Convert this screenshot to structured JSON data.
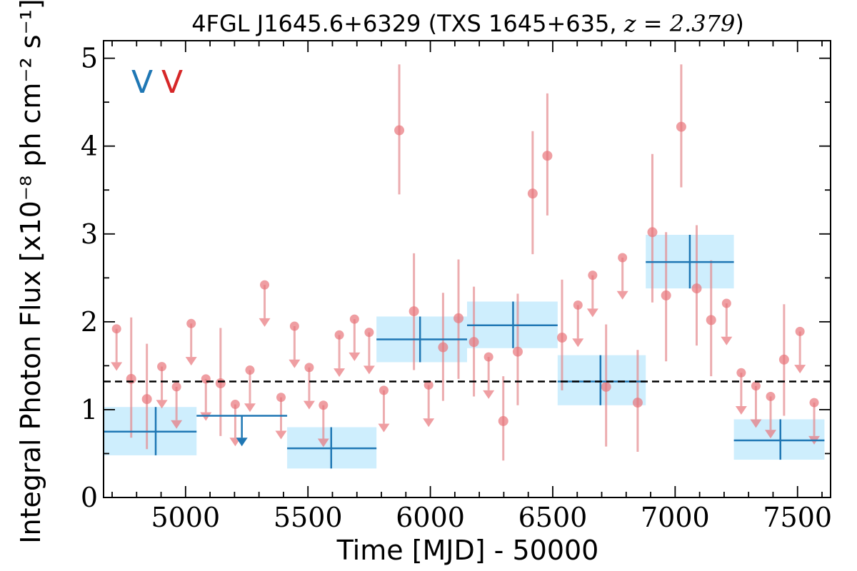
{
  "chart_data": {
    "type": "scatter",
    "title": "4FGL J1645.6+6329 (TXS 1645+635, ",
    "title_math": "z = 2.379",
    "title_close": ")",
    "xlabel": "Time [MJD] - 50000",
    "ylabel": "Integral Photon Flux [x10⁻⁸ ph cm⁻² s⁻¹]",
    "xlim": [
      4665,
      7635
    ],
    "ylim": [
      0,
      5.2
    ],
    "xticks": [
      5000,
      5500,
      6000,
      6500,
      7000,
      7500
    ],
    "xtick_labels": [
      "5000",
      "5500",
      "6000",
      "6500",
      "7000",
      "7500"
    ],
    "yticks": [
      0,
      1,
      2,
      3,
      4,
      5
    ],
    "ytick_labels": [
      "0",
      "1",
      "2",
      "3",
      "4",
      "5"
    ],
    "grid": false,
    "mean_flux": 1.32,
    "legend": [
      {
        "label": "V",
        "color": "#1f77b4"
      },
      {
        "label": "V",
        "color": "#d62728"
      }
    ],
    "colors": {
      "fine": "#e8757a",
      "fine_line": "#e58a8e",
      "coarse": "#1f77b4",
      "coarse_band": "#b3e5fc"
    },
    "fine_series": {
      "name": "",
      "detections": [
        {
          "x": 4778,
          "y": 1.35,
          "lo": 0.68,
          "hi": 2.05
        },
        {
          "x": 4842,
          "y": 1.12,
          "lo": 0.55,
          "hi": 1.75
        },
        {
          "x": 5143,
          "y": 1.3,
          "lo": 0.7,
          "hi": 1.93
        },
        {
          "x": 5873,
          "y": 4.18,
          "lo": 3.45,
          "hi": 4.93
        },
        {
          "x": 5933,
          "y": 2.12,
          "lo": 1.45,
          "hi": 2.78
        },
        {
          "x": 6052,
          "y": 1.71,
          "lo": 1.1,
          "hi": 2.33
        },
        {
          "x": 6115,
          "y": 2.04,
          "lo": 1.35,
          "hi": 2.71
        },
        {
          "x": 6178,
          "y": 1.77,
          "lo": 1.15,
          "hi": 2.4
        },
        {
          "x": 6298,
          "y": 0.87,
          "lo": 0.42,
          "hi": 1.38
        },
        {
          "x": 6357,
          "y": 1.66,
          "lo": 1.05,
          "hi": 2.32
        },
        {
          "x": 6418,
          "y": 3.46,
          "lo": 2.77,
          "hi": 4.17
        },
        {
          "x": 6478,
          "y": 3.89,
          "lo": 3.21,
          "hi": 4.6
        },
        {
          "x": 6538,
          "y": 1.82,
          "lo": 1.22,
          "hi": 2.48
        },
        {
          "x": 6718,
          "y": 1.26,
          "lo": 0.58,
          "hi": 1.97
        },
        {
          "x": 6847,
          "y": 1.08,
          "lo": 0.52,
          "hi": 1.68
        },
        {
          "x": 6907,
          "y": 3.02,
          "lo": 2.22,
          "hi": 3.91
        },
        {
          "x": 6963,
          "y": 2.3,
          "lo": 1.55,
          "hi": 3.02
        },
        {
          "x": 7025,
          "y": 4.22,
          "lo": 3.53,
          "hi": 4.93
        },
        {
          "x": 7088,
          "y": 2.38,
          "lo": 1.73,
          "hi": 3.1
        },
        {
          "x": 7147,
          "y": 2.02,
          "lo": 1.38,
          "hi": 2.7
        },
        {
          "x": 7445,
          "y": 1.57,
          "lo": 0.93,
          "hi": 2.2
        }
      ],
      "upper_limits": [
        {
          "x": 4718,
          "y": 1.92
        },
        {
          "x": 4903,
          "y": 1.49
        },
        {
          "x": 4963,
          "y": 1.26
        },
        {
          "x": 5023,
          "y": 1.98
        },
        {
          "x": 5083,
          "y": 1.35
        },
        {
          "x": 5203,
          "y": 1.06
        },
        {
          "x": 5263,
          "y": 1.45
        },
        {
          "x": 5323,
          "y": 2.42
        },
        {
          "x": 5390,
          "y": 1.14
        },
        {
          "x": 5445,
          "y": 1.95
        },
        {
          "x": 5505,
          "y": 1.48
        },
        {
          "x": 5563,
          "y": 1.05
        },
        {
          "x": 5628,
          "y": 1.85
        },
        {
          "x": 5690,
          "y": 2.03
        },
        {
          "x": 5750,
          "y": 1.88
        },
        {
          "x": 5810,
          "y": 1.22
        },
        {
          "x": 5993,
          "y": 1.28
        },
        {
          "x": 6238,
          "y": 1.6
        },
        {
          "x": 6603,
          "y": 2.19
        },
        {
          "x": 6663,
          "y": 2.53
        },
        {
          "x": 6785,
          "y": 2.73
        },
        {
          "x": 7210,
          "y": 2.21
        },
        {
          "x": 7270,
          "y": 1.42
        },
        {
          "x": 7330,
          "y": 1.27
        },
        {
          "x": 7390,
          "y": 1.15
        },
        {
          "x": 7510,
          "y": 1.89
        },
        {
          "x": 7568,
          "y": 1.08
        }
      ]
    },
    "coarse_series": {
      "name": "",
      "detections": [
        {
          "x": 4878,
          "xlo": 4665,
          "xhi": 5045,
          "y": 0.75,
          "lo": 0.48,
          "hi": 1.03
        },
        {
          "x": 5595,
          "xlo": 5415,
          "xhi": 5780,
          "y": 0.56,
          "lo": 0.33,
          "hi": 0.8
        },
        {
          "x": 5958,
          "xlo": 5780,
          "xhi": 6150,
          "y": 1.8,
          "lo": 1.54,
          "hi": 2.06
        },
        {
          "x": 6338,
          "xlo": 6150,
          "xhi": 6520,
          "y": 1.96,
          "lo": 1.7,
          "hi": 2.23
        },
        {
          "x": 6695,
          "xlo": 6520,
          "xhi": 6880,
          "y": 1.32,
          "lo": 1.05,
          "hi": 1.62
        },
        {
          "x": 7060,
          "xlo": 6880,
          "xhi": 7240,
          "y": 2.68,
          "lo": 2.38,
          "hi": 2.99
        },
        {
          "x": 7430,
          "xlo": 7240,
          "xhi": 7610,
          "y": 0.65,
          "lo": 0.43,
          "hi": 0.89
        }
      ],
      "upper_limits": [
        {
          "x": 5230,
          "xlo": 5045,
          "xhi": 5415,
          "y": 0.93
        }
      ]
    }
  }
}
